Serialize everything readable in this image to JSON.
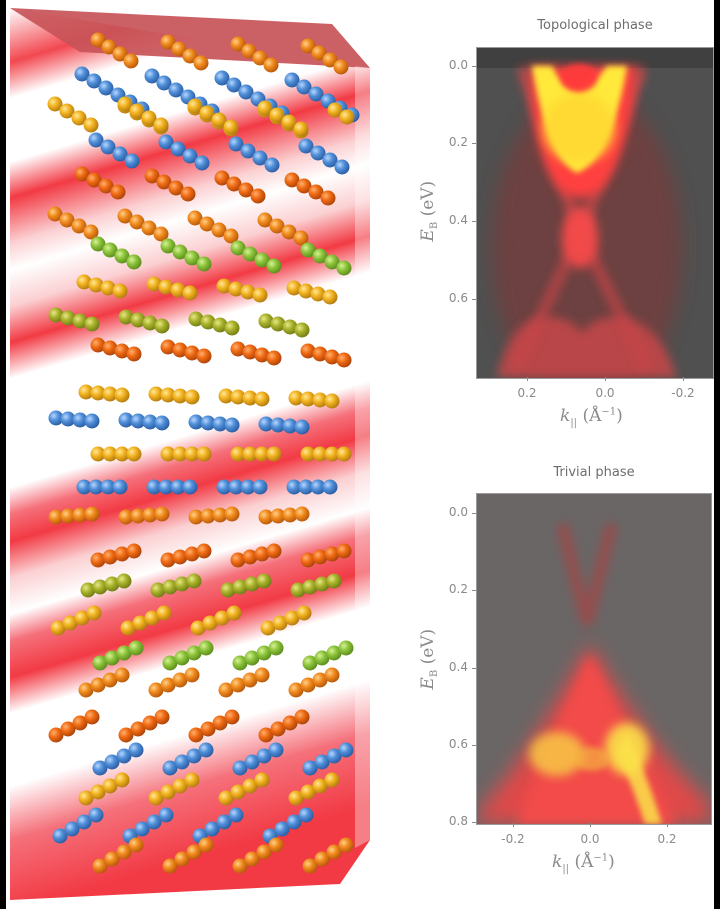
{
  "figure": {
    "left_panel": {
      "description": "3D crystal structure illustration with stacked chains of colored atoms (orange, yellow, blue, green) inside a translucent red prism with red-white banding",
      "atom_colors": {
        "orange": "#f08a1c",
        "yellow": "#f2b21e",
        "blue": "#4f8fd8",
        "green": "#8cc43a",
        "olive": "#a9b22a",
        "deep_orange": "#f06a12"
      },
      "band_color": "#f2434b"
    }
  },
  "chart_data": [
    {
      "type": "heatmap",
      "title": "Topological phase",
      "xlabel_symbol": "k",
      "xlabel_sub": "||",
      "xlabel_unit": "(Å",
      "xlabel_sup": "−1",
      "xlabel_close": ")",
      "ylabel_symbol": "E",
      "ylabel_sub": "B",
      "ylabel_unit": "(eV)",
      "xticks": [
        "0.2",
        "0.0",
        "-0.2"
      ],
      "xtick_values": [
        0.2,
        0.0,
        -0.2
      ],
      "xlim": [
        0.32,
        -0.26
      ],
      "yticks": [
        "0.0",
        "0.2",
        "0.4",
        "0.6"
      ],
      "ytick_values": [
        0.0,
        0.2,
        0.4,
        0.6
      ],
      "ylim": [
        -0.05,
        0.8
      ],
      "colormap": "black-red-yellow (hot)",
      "features": [
        {
          "name": "bulk conduction band",
          "shape": "U-shaped parabola",
          "energy_range_eV": [
            0.0,
            0.2
          ],
          "k_center": 0.03,
          "intensity": "highest (yellow)"
        },
        {
          "name": "Dirac surface state",
          "shape": "X-shaped crossing",
          "dirac_point_eV": 0.46,
          "k_center": 0.03
        },
        {
          "name": "bulk valence band",
          "shape": "M-shaped",
          "energy_range_eV": [
            0.62,
            0.8
          ],
          "intensity": "medium (red)"
        }
      ]
    },
    {
      "type": "heatmap",
      "title": "Trivial phase",
      "xlabel_symbol": "k",
      "xlabel_sub": "||",
      "xlabel_unit": "(Å",
      "xlabel_sup": "−1",
      "xlabel_close": ")",
      "ylabel_symbol": "E",
      "ylabel_sub": "B",
      "ylabel_unit": "(eV)",
      "xticks": [
        "-0.2",
        "0.0",
        "0.2"
      ],
      "xtick_values": [
        -0.2,
        0.0,
        0.2
      ],
      "xlim": [
        -0.3,
        0.31
      ],
      "yticks": [
        "0.0",
        "0.2",
        "0.4",
        "0.6",
        "0.8"
      ],
      "ytick_values": [
        0.0,
        0.2,
        0.4,
        0.6,
        0.8
      ],
      "ylim": [
        -0.05,
        0.8
      ],
      "colormap": "black-red-yellow (hot)",
      "features": [
        {
          "name": "conduction band",
          "shape": "V-shaped, weak",
          "energy_range_eV": [
            0.0,
            0.3
          ],
          "k_center": 0.02
        },
        {
          "name": "band gap",
          "energy_range_eV": [
            0.3,
            0.35
          ]
        },
        {
          "name": "valence band",
          "shape": "Λ-shaped cone, strong",
          "energy_range_eV": [
            0.35,
            0.8
          ],
          "peak_eV": 0.66,
          "intensity": "highest (yellow) near k=0.1"
        }
      ]
    }
  ]
}
